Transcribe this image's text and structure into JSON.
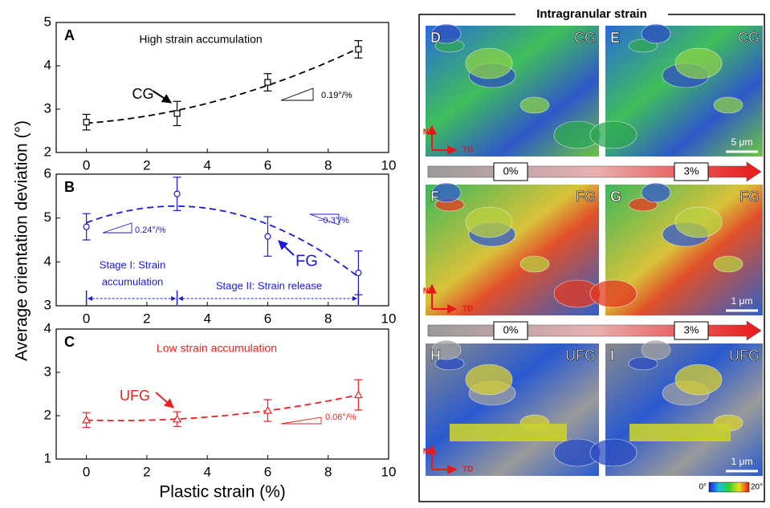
{
  "chart_data": [
    {
      "type": "line",
      "panel": "A",
      "x": [
        0,
        3,
        6,
        9
      ],
      "values": [
        2.7,
        2.9,
        3.62,
        4.38
      ],
      "errors": [
        0.18,
        0.28,
        0.2,
        0.2
      ],
      "color": "#000000",
      "marker": "square",
      "xlim": [
        -1,
        10
      ],
      "xticks": [
        0,
        2,
        4,
        6,
        8,
        10
      ],
      "ylim": [
        2,
        5
      ],
      "yticks": [
        2,
        3,
        4,
        5
      ],
      "annotations": [
        "High strain accumulation",
        "CG",
        "0.19°/%"
      ]
    },
    {
      "type": "line",
      "panel": "B",
      "ylabel": "Average orientation deviation (°)",
      "x": [
        0,
        3,
        6,
        9
      ],
      "values": [
        4.8,
        5.55,
        4.58,
        3.75
      ],
      "errors": [
        0.3,
        0.38,
        0.45,
        0.5
      ],
      "color": "#1a1adc",
      "marker": "circle",
      "xlim": [
        -1,
        10
      ],
      "xticks": [
        0,
        2,
        4,
        6,
        8,
        10
      ],
      "ylim": [
        3,
        6
      ],
      "yticks": [
        3,
        4,
        5,
        6
      ],
      "annotations": [
        "0.24°/%",
        "−0.3°/%",
        "FG",
        "Stage I: Strain",
        "accumulation",
        "Stage II: Strain release"
      ]
    },
    {
      "type": "line",
      "panel": "C",
      "xlabel": "Plastic strain (%)",
      "x": [
        0,
        3,
        6,
        9
      ],
      "values": [
        1.9,
        1.92,
        2.12,
        2.48
      ],
      "errors": [
        0.17,
        0.17,
        0.25,
        0.35
      ],
      "color": "#e8221e",
      "marker": "triangle",
      "xlim": [
        -1,
        10
      ],
      "xticks": [
        0,
        2,
        4,
        6,
        8,
        10
      ],
      "ylim": [
        1,
        4
      ],
      "yticks": [
        1,
        2,
        3,
        4
      ],
      "annotations": [
        "Low strain accumulation",
        "UFG",
        "0.06°/%"
      ]
    }
  ],
  "micrographs": {
    "title": "Intragranular strain",
    "panels": [
      {
        "letter": "D",
        "label": "CG"
      },
      {
        "letter": "E",
        "label": "CG"
      },
      {
        "letter": "F",
        "label": "FG"
      },
      {
        "letter": "G",
        "label": "FG"
      },
      {
        "letter": "H",
        "label": "UFG"
      },
      {
        "letter": "I",
        "label": "UFG"
      }
    ],
    "axes": {
      "nd": "ND",
      "td": "TD"
    },
    "strain_arrows": [
      [
        "0%",
        "3%"
      ],
      [
        "0%",
        "3%"
      ]
    ],
    "scale_bars": [
      "5 μm",
      "1 μm",
      "1 μm"
    ],
    "colorbar": [
      "0°",
      "20°"
    ]
  }
}
